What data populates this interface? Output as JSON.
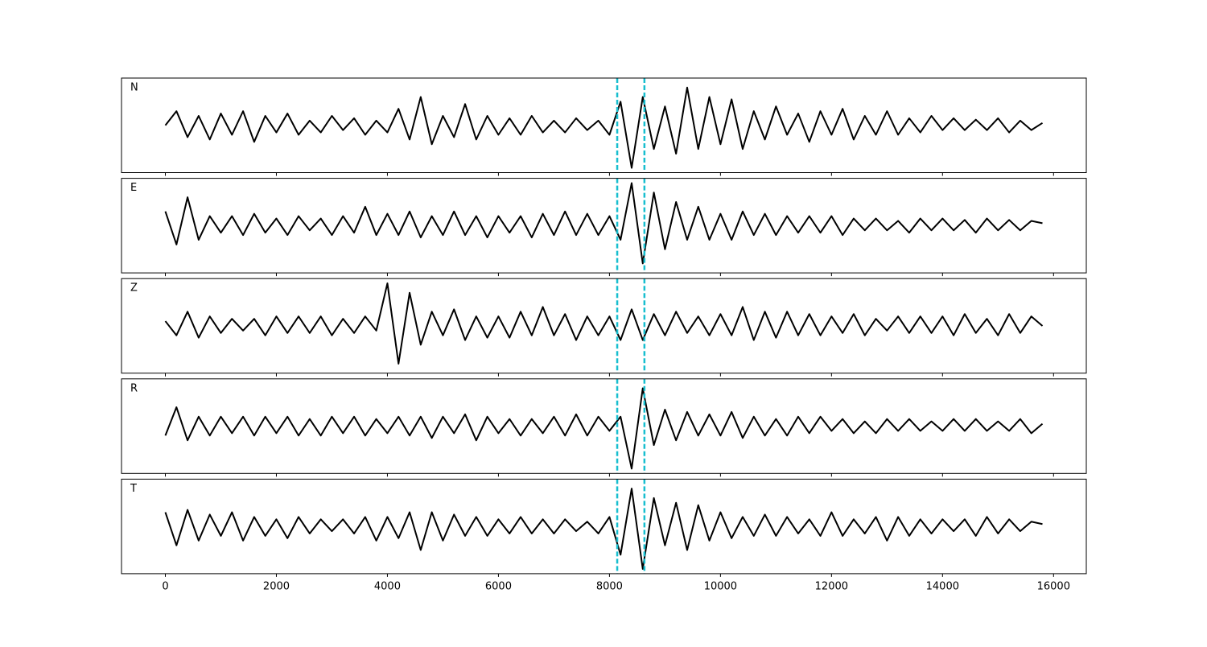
{
  "chart_data": {
    "type": "line",
    "subplots": true,
    "x": [
      0,
      200,
      400,
      600,
      800,
      1000,
      1200,
      1400,
      1600,
      1800,
      2000,
      2200,
      2400,
      2600,
      2800,
      3000,
      3200,
      3400,
      3600,
      3800,
      4000,
      4200,
      4400,
      4600,
      4800,
      5000,
      5200,
      5400,
      5600,
      5800,
      6000,
      6200,
      6400,
      6600,
      6800,
      7000,
      7200,
      7400,
      7600,
      7800,
      8000,
      8200,
      8400,
      8600,
      8800,
      9000,
      9200,
      9400,
      9600,
      9800,
      10000,
      10200,
      10400,
      10600,
      10800,
      11000,
      11200,
      11400,
      11600,
      11800,
      12000,
      12200,
      12400,
      12600,
      12800,
      13000,
      13200,
      13400,
      13600,
      13800,
      14000,
      14200,
      14400,
      14600,
      14800,
      15000,
      15200,
      15400,
      15600,
      15800
    ],
    "series": [
      {
        "name": "N",
        "color": "#000000",
        "values": [
          0.0,
          0.3,
          -0.25,
          0.2,
          -0.3,
          0.25,
          -0.2,
          0.3,
          -0.35,
          0.2,
          -0.15,
          0.25,
          -0.2,
          0.1,
          -0.15,
          0.2,
          -0.1,
          0.15,
          -0.2,
          0.1,
          -0.15,
          0.35,
          -0.3,
          0.6,
          -0.4,
          0.2,
          -0.25,
          0.45,
          -0.3,
          0.2,
          -0.2,
          0.15,
          -0.2,
          0.2,
          -0.15,
          0.1,
          -0.15,
          0.15,
          -0.1,
          0.1,
          -0.2,
          0.5,
          -0.9,
          0.6,
          -0.5,
          0.4,
          -0.6,
          0.8,
          -0.5,
          0.6,
          -0.4,
          0.55,
          -0.5,
          0.3,
          -0.3,
          0.4,
          -0.2,
          0.25,
          -0.35,
          0.3,
          -0.2,
          0.35,
          -0.3,
          0.2,
          -0.2,
          0.3,
          -0.2,
          0.15,
          -0.15,
          0.2,
          -0.1,
          0.15,
          -0.1,
          0.12,
          -0.1,
          0.15,
          -0.15,
          0.1,
          -0.1,
          0.05
        ]
      },
      {
        "name": "E",
        "color": "#000000",
        "values": [
          0.3,
          -0.4,
          0.6,
          -0.3,
          0.2,
          -0.15,
          0.2,
          -0.2,
          0.25,
          -0.15,
          0.15,
          -0.2,
          0.2,
          -0.1,
          0.15,
          -0.2,
          0.2,
          -0.15,
          0.4,
          -0.2,
          0.25,
          -0.2,
          0.3,
          -0.25,
          0.2,
          -0.2,
          0.3,
          -0.2,
          0.2,
          -0.25,
          0.2,
          -0.15,
          0.2,
          -0.25,
          0.25,
          -0.2,
          0.3,
          -0.2,
          0.25,
          -0.2,
          0.2,
          -0.3,
          0.9,
          -0.8,
          0.7,
          -0.5,
          0.5,
          -0.3,
          0.4,
          -0.3,
          0.25,
          -0.3,
          0.3,
          -0.2,
          0.25,
          -0.2,
          0.2,
          -0.15,
          0.2,
          -0.15,
          0.2,
          -0.2,
          0.15,
          -0.1,
          0.15,
          -0.1,
          0.1,
          -0.15,
          0.15,
          -0.1,
          0.15,
          -0.1,
          0.12,
          -0.15,
          0.15,
          -0.1,
          0.12,
          -0.1,
          0.1,
          0.05
        ]
      },
      {
        "name": "Z",
        "color": "#000000",
        "values": [
          0.1,
          -0.2,
          0.3,
          -0.25,
          0.2,
          -0.15,
          0.15,
          -0.1,
          0.15,
          -0.2,
          0.2,
          -0.15,
          0.2,
          -0.15,
          0.2,
          -0.2,
          0.15,
          -0.15,
          0.2,
          -0.1,
          0.9,
          -0.8,
          0.7,
          -0.4,
          0.3,
          -0.2,
          0.35,
          -0.3,
          0.2,
          -0.25,
          0.2,
          -0.25,
          0.3,
          -0.2,
          0.4,
          -0.2,
          0.25,
          -0.3,
          0.2,
          -0.2,
          0.2,
          -0.3,
          0.35,
          -0.3,
          0.25,
          -0.2,
          0.3,
          -0.15,
          0.2,
          -0.2,
          0.25,
          -0.2,
          0.4,
          -0.3,
          0.3,
          -0.25,
          0.3,
          -0.2,
          0.25,
          -0.2,
          0.2,
          -0.15,
          0.25,
          -0.2,
          0.15,
          -0.1,
          0.2,
          -0.15,
          0.2,
          -0.15,
          0.2,
          -0.2,
          0.25,
          -0.15,
          0.15,
          -0.2,
          0.25,
          -0.15,
          0.2,
          0.0
        ]
      },
      {
        "name": "R",
        "color": "#000000",
        "values": [
          -0.2,
          0.4,
          -0.3,
          0.2,
          -0.2,
          0.2,
          -0.15,
          0.2,
          -0.2,
          0.2,
          -0.15,
          0.2,
          -0.2,
          0.15,
          -0.2,
          0.2,
          -0.15,
          0.2,
          -0.2,
          0.15,
          -0.15,
          0.2,
          -0.2,
          0.2,
          -0.25,
          0.2,
          -0.15,
          0.25,
          -0.3,
          0.2,
          -0.15,
          0.15,
          -0.2,
          0.15,
          -0.15,
          0.2,
          -0.2,
          0.25,
          -0.2,
          0.2,
          -0.1,
          0.2,
          -0.9,
          0.8,
          -0.4,
          0.35,
          -0.3,
          0.3,
          -0.2,
          0.25,
          -0.2,
          0.3,
          -0.25,
          0.2,
          -0.2,
          0.15,
          -0.2,
          0.2,
          -0.15,
          0.2,
          -0.1,
          0.15,
          -0.15,
          0.1,
          -0.15,
          0.15,
          -0.1,
          0.15,
          -0.1,
          0.1,
          -0.1,
          0.15,
          -0.1,
          0.15,
          -0.1,
          0.1,
          -0.1,
          0.15,
          -0.15,
          0.05
        ]
      },
      {
        "name": "T",
        "color": "#000000",
        "values": [
          0.3,
          -0.4,
          0.35,
          -0.3,
          0.25,
          -0.2,
          0.3,
          -0.3,
          0.2,
          -0.2,
          0.15,
          -0.25,
          0.2,
          -0.15,
          0.15,
          -0.1,
          0.15,
          -0.15,
          0.2,
          -0.3,
          0.2,
          -0.25,
          0.3,
          -0.5,
          0.3,
          -0.3,
          0.25,
          -0.2,
          0.2,
          -0.2,
          0.15,
          -0.15,
          0.2,
          -0.15,
          0.15,
          -0.15,
          0.15,
          -0.1,
          0.1,
          -0.15,
          0.2,
          -0.6,
          0.8,
          -0.9,
          0.6,
          -0.4,
          0.5,
          -0.5,
          0.45,
          -0.3,
          0.3,
          -0.25,
          0.2,
          -0.2,
          0.25,
          -0.2,
          0.2,
          -0.15,
          0.15,
          -0.2,
          0.3,
          -0.2,
          0.15,
          -0.15,
          0.2,
          -0.3,
          0.2,
          -0.2,
          0.15,
          -0.15,
          0.15,
          -0.1,
          0.15,
          -0.2,
          0.2,
          -0.15,
          0.15,
          -0.1,
          0.1,
          0.05
        ]
      }
    ],
    "vlines": [
      8140,
      8630
    ],
    "vline_color": "#17becf",
    "xlim": [
      -790,
      16590
    ],
    "ylim": [
      -1,
      1
    ],
    "xticks": [
      0,
      2000,
      4000,
      6000,
      8000,
      10000,
      12000,
      14000,
      16000
    ]
  }
}
